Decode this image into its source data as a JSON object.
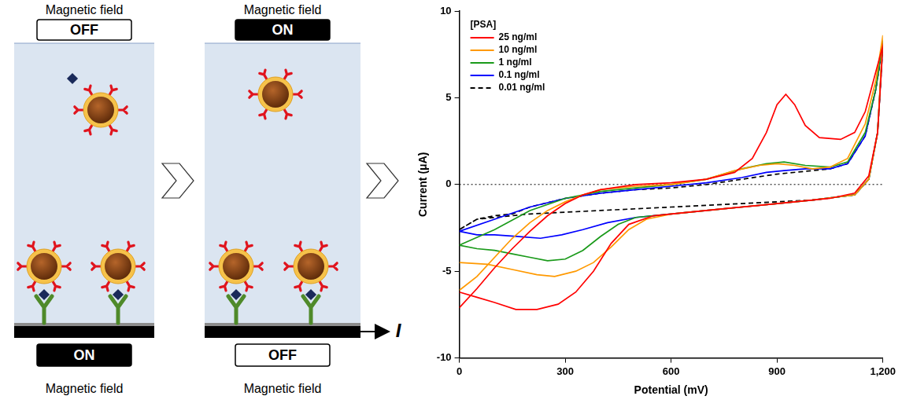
{
  "diagram": {
    "panels": [
      {
        "top_label": "Magnetic field",
        "top_state": "OFF",
        "bottom_state": "ON",
        "bottom_label": "Magnetic field"
      },
      {
        "top_label": "Magnetic field",
        "top_state": "ON",
        "bottom_state": "OFF",
        "bottom_label": "Magnetic field"
      }
    ],
    "output_label": "I"
  },
  "chart_data": {
    "type": "line",
    "x_label": "Potential (mV)",
    "y_label": "Current (μA)",
    "xlim": [
      0,
      1200
    ],
    "xticks": [
      0,
      300,
      600,
      900,
      1200
    ],
    "ylim": [
      -10,
      10
    ],
    "yticks": [
      -10,
      -5,
      0,
      5,
      10
    ],
    "hlines": [
      0
    ],
    "grid": false,
    "legend": "top-left",
    "legend_title": "[PSA]",
    "series": [
      {
        "name": "25 ng/ml",
        "color": "#ff0000",
        "line_style": "solid",
        "x": [
          0,
          50,
          100,
          150,
          200,
          250,
          300,
          350,
          400,
          500,
          600,
          700,
          780,
          830,
          870,
          900,
          925,
          950,
          980,
          1020,
          1080,
          1120,
          1150,
          1180,
          1200,
          1185,
          1160,
          1120,
          1050,
          950,
          850,
          750,
          650,
          550,
          480,
          430,
          380,
          330,
          280,
          220,
          160,
          100,
          50,
          0
        ],
        "values": [
          -7.1,
          -6,
          -4.8,
          -3.7,
          -2.7,
          -1.8,
          -1.1,
          -0.6,
          -0.3,
          0,
          0.1,
          0.3,
          0.7,
          1.5,
          3,
          4.6,
          5.2,
          4.6,
          3.4,
          2.7,
          2.6,
          3,
          4.2,
          6.5,
          8,
          3,
          0.5,
          -0.5,
          -0.8,
          -1,
          -1.2,
          -1.4,
          -1.6,
          -1.8,
          -2.3,
          -3.4,
          -5,
          -6.2,
          -6.9,
          -7.2,
          -7.2,
          -6.8,
          -6.5,
          -6.2
        ]
      },
      {
        "name": "10 ng/ml",
        "color": "#ff9900",
        "line_style": "solid",
        "x": [
          0,
          50,
          100,
          150,
          200,
          250,
          300,
          350,
          400,
          500,
          600,
          700,
          780,
          850,
          900,
          950,
          1000,
          1050,
          1100,
          1150,
          1180,
          1200,
          1185,
          1160,
          1120,
          1000,
          900,
          800,
          700,
          600,
          530,
          480,
          430,
          380,
          330,
          270,
          220,
          150,
          80,
          0
        ],
        "values": [
          -6.1,
          -5.3,
          -4.2,
          -3.1,
          -2.2,
          -1.5,
          -1,
          -0.6,
          -0.3,
          -0.1,
          0,
          0.3,
          0.8,
          1.1,
          1.2,
          1.1,
          0.9,
          1,
          1.5,
          3.5,
          6,
          8.6,
          3,
          0.3,
          -0.6,
          -0.9,
          -1.1,
          -1.3,
          -1.5,
          -1.7,
          -2,
          -2.6,
          -3.6,
          -4.5,
          -5,
          -5.3,
          -5.2,
          -4.9,
          -4.6,
          -4.5
        ]
      },
      {
        "name": "1 ng/ml",
        "color": "#1a9a1a",
        "line_style": "solid",
        "x": [
          0,
          100,
          200,
          300,
          400,
          500,
          600,
          700,
          800,
          870,
          920,
          980,
          1050,
          1100,
          1150,
          1180,
          1200,
          1185,
          1160,
          1120,
          1000,
          900,
          800,
          700,
          600,
          500,
          450,
          400,
          350,
          300,
          250,
          200,
          150,
          100,
          50,
          0
        ],
        "values": [
          -3.5,
          -2.6,
          -1.5,
          -0.8,
          -0.4,
          -0.2,
          0,
          0.3,
          0.9,
          1.2,
          1.3,
          1.1,
          1,
          1.3,
          3,
          5.5,
          8.3,
          3,
          0.3,
          -0.6,
          -0.9,
          -1.1,
          -1.3,
          -1.5,
          -1.7,
          -1.9,
          -2.3,
          -3,
          -3.8,
          -4.3,
          -4.4,
          -4.2,
          -4,
          -3.8,
          -3.7,
          -3.5
        ]
      },
      {
        "name": "0.1 ng/ml",
        "color": "#0000ff",
        "line_style": "solid",
        "x": [
          0,
          100,
          200,
          300,
          400,
          500,
          600,
          700,
          800,
          870,
          920,
          980,
          1050,
          1100,
          1150,
          1180,
          1200,
          1185,
          1160,
          1120,
          1000,
          900,
          800,
          700,
          600,
          500,
          420,
          350,
          290,
          230,
          170,
          100,
          50,
          0
        ],
        "values": [
          -2.7,
          -2,
          -1.3,
          -0.8,
          -0.5,
          -0.3,
          -0.1,
          0.1,
          0.4,
          0.7,
          0.8,
          0.9,
          0.9,
          1.2,
          2.8,
          5.5,
          8.2,
          3,
          0.3,
          -0.6,
          -0.9,
          -1.1,
          -1.3,
          -1.5,
          -1.7,
          -1.9,
          -2.2,
          -2.6,
          -2.9,
          -3.1,
          -3,
          -2.9,
          -2.9,
          -2.7
        ]
      },
      {
        "name": "0.01 ng/ml",
        "color": "#000000",
        "line_style": "dashed",
        "x": [
          0,
          50,
          100,
          150,
          200,
          300,
          400,
          500,
          600,
          700,
          800,
          900,
          1000,
          1050,
          1100,
          1150,
          1180,
          1200,
          1185,
          1160,
          1120,
          1000,
          900,
          800,
          700,
          600,
          500,
          400,
          300,
          200,
          100,
          50,
          0
        ],
        "values": [
          -2.6,
          -2,
          -1.8,
          -1.7,
          -1.3,
          -0.8,
          -0.5,
          -0.3,
          -0.2,
          0,
          0.3,
          0.6,
          0.8,
          0.9,
          1.2,
          2.8,
          5.5,
          8,
          3,
          0.3,
          -0.6,
          -0.9,
          -1,
          -1.1,
          -1.2,
          -1.3,
          -1.4,
          -1.5,
          -1.6,
          -1.7,
          -1.9,
          -2,
          -2.6
        ]
      }
    ]
  }
}
